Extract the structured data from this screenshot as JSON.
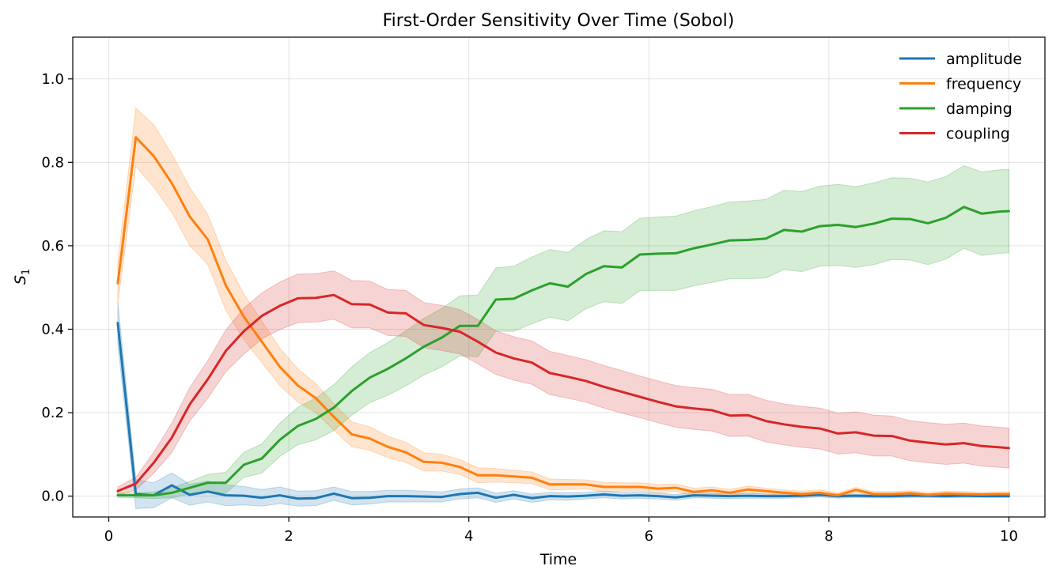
{
  "chart_data": {
    "type": "line",
    "title": "First-Order Sensitivity Over Time (Sobol)",
    "xlabel": "Time",
    "ylabel": "S1",
    "ylabel_main": "S",
    "ylabel_sub": "1",
    "xlim": [
      -0.4,
      10.4
    ],
    "ylim": [
      -0.05,
      1.1
    ],
    "xticks": [
      0,
      2,
      4,
      6,
      8,
      10
    ],
    "xtick_labels": [
      "0",
      "2",
      "4",
      "6",
      "8",
      "10"
    ],
    "yticks": [
      0.0,
      0.2,
      0.4,
      0.6,
      0.8,
      1.0
    ],
    "ytick_labels": [
      "0.0",
      "0.2",
      "0.4",
      "0.6",
      "0.8",
      "1.0"
    ],
    "grid": true,
    "legend_position": "top-right",
    "x": [
      0.1,
      0.3,
      0.5,
      0.7,
      0.9,
      1.1,
      1.3,
      1.5,
      1.7,
      1.9,
      2.1,
      2.3,
      2.5,
      2.7,
      2.9,
      3.1,
      3.3,
      3.5,
      3.7,
      3.9,
      4.1,
      4.3,
      4.5,
      4.7,
      4.9,
      5.1,
      5.3,
      5.5,
      5.7,
      5.9,
      6.1,
      6.3,
      6.5,
      6.7,
      6.9,
      7.1,
      7.3,
      7.5,
      7.7,
      7.9,
      8.1,
      8.3,
      8.5,
      8.7,
      8.9,
      9.1,
      9.3,
      9.5,
      9.7,
      9.9,
      10.0
    ],
    "series": [
      {
        "name": "amplitude",
        "color": "#1f77b4",
        "values": [
          0.415,
          0.005,
          0.002,
          0.026,
          0.003,
          0.011,
          0.002,
          0.001,
          -0.004,
          0.002,
          -0.006,
          -0.005,
          0.006,
          -0.005,
          -0.004,
          0.0,
          0.0,
          -0.001,
          -0.002,
          0.005,
          0.008,
          -0.004,
          0.003,
          -0.005,
          0.0,
          -0.001,
          0.001,
          0.004,
          0.001,
          0.002,
          0.0,
          -0.003,
          0.002,
          0.001,
          0.0,
          0.001,
          0.0,
          0.0,
          0.001,
          0.003,
          0.0,
          0.001,
          0.0,
          0.0,
          0.001,
          0.001,
          0.0,
          0.001,
          0.0,
          0.0,
          0.0
        ],
        "band": [
          0.05,
          0.035,
          0.03,
          0.03,
          0.025,
          0.025,
          0.025,
          0.022,
          0.02,
          0.02,
          0.018,
          0.018,
          0.016,
          0.016,
          0.015,
          0.014,
          0.014,
          0.013,
          0.012,
          0.012,
          0.012,
          0.011,
          0.01,
          0.01,
          0.009,
          0.009,
          0.008,
          0.008,
          0.008,
          0.007,
          0.007,
          0.007,
          0.006,
          0.006,
          0.006,
          0.006,
          0.005,
          0.005,
          0.005,
          0.005,
          0.005,
          0.004,
          0.004,
          0.004,
          0.004,
          0.004,
          0.004,
          0.004,
          0.003,
          0.003,
          0.003
        ]
      },
      {
        "name": "frequency",
        "color": "#ff7f0e",
        "values": [
          0.51,
          0.86,
          0.815,
          0.75,
          0.67,
          0.615,
          0.505,
          0.43,
          0.37,
          0.31,
          0.265,
          0.235,
          0.19,
          0.148,
          0.138,
          0.118,
          0.105,
          0.082,
          0.08,
          0.07,
          0.05,
          0.05,
          0.047,
          0.044,
          0.028,
          0.028,
          0.028,
          0.022,
          0.022,
          0.022,
          0.018,
          0.02,
          0.01,
          0.014,
          0.008,
          0.016,
          0.012,
          0.008,
          0.005,
          0.008,
          0.002,
          0.015,
          0.005,
          0.005,
          0.007,
          0.003,
          0.006,
          0.005,
          0.004,
          0.005,
          0.005
        ],
        "band": [
          0.05,
          0.07,
          0.075,
          0.07,
          0.07,
          0.06,
          0.06,
          0.055,
          0.05,
          0.045,
          0.04,
          0.035,
          0.032,
          0.03,
          0.028,
          0.026,
          0.024,
          0.022,
          0.02,
          0.018,
          0.018,
          0.016,
          0.015,
          0.014,
          0.013,
          0.012,
          0.011,
          0.011,
          0.01,
          0.01,
          0.01,
          0.009,
          0.009,
          0.008,
          0.008,
          0.008,
          0.007,
          0.007,
          0.007,
          0.007,
          0.006,
          0.006,
          0.006,
          0.006,
          0.006,
          0.006,
          0.006,
          0.006,
          0.005,
          0.005,
          0.005
        ]
      },
      {
        "name": "damping",
        "color": "#2ca02c",
        "values": [
          0.002,
          0.002,
          0.002,
          0.008,
          0.02,
          0.032,
          0.032,
          0.075,
          0.09,
          0.135,
          0.168,
          0.185,
          0.212,
          0.252,
          0.284,
          0.305,
          0.33,
          0.358,
          0.38,
          0.408,
          0.408,
          0.471,
          0.473,
          0.493,
          0.51,
          0.502,
          0.532,
          0.551,
          0.548,
          0.579,
          0.581,
          0.582,
          0.594,
          0.603,
          0.613,
          0.614,
          0.617,
          0.638,
          0.634,
          0.647,
          0.65,
          0.645,
          0.653,
          0.665,
          0.664,
          0.654,
          0.667,
          0.693,
          0.677,
          0.682,
          0.683
        ],
        "band": [
          0.005,
          0.006,
          0.008,
          0.012,
          0.015,
          0.02,
          0.025,
          0.03,
          0.035,
          0.04,
          0.045,
          0.05,
          0.055,
          0.058,
          0.06,
          0.063,
          0.066,
          0.068,
          0.07,
          0.072,
          0.074,
          0.076,
          0.078,
          0.08,
          0.081,
          0.082,
          0.083,
          0.085,
          0.086,
          0.087,
          0.088,
          0.089,
          0.09,
          0.091,
          0.092,
          0.093,
          0.094,
          0.095,
          0.096,
          0.096,
          0.097,
          0.097,
          0.098,
          0.098,
          0.098,
          0.099,
          0.099,
          0.099,
          0.1,
          0.1,
          0.1
        ]
      },
      {
        "name": "coupling",
        "color": "#d62728",
        "values": [
          0.012,
          0.03,
          0.08,
          0.14,
          0.22,
          0.28,
          0.348,
          0.395,
          0.432,
          0.456,
          0.474,
          0.475,
          0.482,
          0.46,
          0.459,
          0.44,
          0.438,
          0.41,
          0.403,
          0.394,
          0.37,
          0.344,
          0.33,
          0.32,
          0.295,
          0.286,
          0.276,
          0.262,
          0.25,
          0.238,
          0.226,
          0.215,
          0.21,
          0.206,
          0.193,
          0.194,
          0.18,
          0.172,
          0.166,
          0.162,
          0.15,
          0.153,
          0.145,
          0.144,
          0.133,
          0.128,
          0.124,
          0.127,
          0.12,
          0.117,
          0.115
        ],
        "band": [
          0.01,
          0.015,
          0.025,
          0.035,
          0.04,
          0.045,
          0.05,
          0.055,
          0.055,
          0.057,
          0.058,
          0.058,
          0.058,
          0.057,
          0.056,
          0.055,
          0.055,
          0.054,
          0.054,
          0.053,
          0.053,
          0.052,
          0.052,
          0.052,
          0.052,
          0.051,
          0.051,
          0.051,
          0.051,
          0.05,
          0.05,
          0.05,
          0.05,
          0.05,
          0.05,
          0.05,
          0.05,
          0.049,
          0.049,
          0.049,
          0.049,
          0.049,
          0.049,
          0.048,
          0.048,
          0.048,
          0.048,
          0.048,
          0.048,
          0.048,
          0.048
        ]
      }
    ]
  }
}
